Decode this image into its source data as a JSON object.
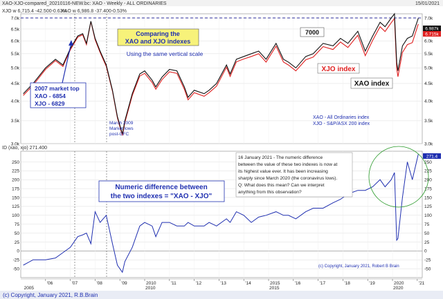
{
  "header": {
    "title": "XAO-XJO-compared_20210116-NEW.bc: XAO - Weekly - ALL ORDINARIES",
    "date": "15/01/2021",
    "legend1": "XJO w  6,715.4  -42.500-0.63%",
    "legend2": "XAO w  6,986.8  -37.400-0.53%"
  },
  "top_panel": {
    "annotations": {
      "title_line1": "Comparing the",
      "title_line2": "XAO and XJO indexes",
      "subtitle": "Using the same vertical scale",
      "market_top_1": "2007 market top",
      "market_top_2": "XAO - 6854",
      "market_top_3": "XJO - 6829",
      "gfc_1": "March 2009",
      "gfc_2": "Market lows",
      "gfc_3": "post-GFC",
      "level_7000": "7000",
      "xjo_label": "XJO index",
      "xao_label": "XAO index",
      "legend_xao": "XAO - All Ordinaries index",
      "legend_xjo": "XJO - S&P/ASX 200 index"
    },
    "last_xao": "6.987k",
    "last_xjo": "6.715k"
  },
  "bottom_panel": {
    "header": "ID (xao, xjo)  271.400",
    "last_value": "271.4",
    "box_title_1": "Numeric difference between",
    "box_title_2": "the two indexes = \"XAO - XJO\"",
    "note_lines": [
      "16 January 2021 - The numeric difference",
      "between the value of these two indexes is now at",
      "its highest value ever. It has been increasing",
      "sharply since March 2020 (the coronavirus lows).",
      "Q: What does this mean? Can we interpret",
      "anything from this observation?"
    ],
    "copyright": "(c) Copyright, January 2021, Robert B Brain"
  },
  "footer": {
    "copyright": "(c) Copyright, January 2021, R.B.Brain"
  },
  "colors": {
    "xao": "#111111",
    "xjo": "#e02020",
    "diff": "#1f2fb0",
    "ref_line": "#2a2a9a",
    "circle": "#2a9a2a",
    "bg": "#ffffff"
  },
  "chart_data": [
    {
      "type": "line",
      "title": "Comparing the XAO and XJO indexes",
      "subtitle": "Using the same vertical scale",
      "y_scale": "log",
      "ylim": [
        3.0,
        7.2
      ],
      "yticks": [
        "3.0k",
        "3.5k",
        "4.0k",
        "4.5k",
        "5.0k",
        "5.5k",
        "6.0k",
        "6.5k",
        "7.0k"
      ],
      "ytick_values": [
        3.0,
        3.5,
        4.0,
        4.5,
        5.0,
        5.5,
        6.0,
        6.5,
        7.0
      ],
      "reference_line": 7.0,
      "grid": true,
      "x": [
        2005.1,
        2005.5,
        2006.0,
        2006.4,
        2006.7,
        2007.0,
        2007.3,
        2007.5,
        2007.65,
        2007.83,
        2008.0,
        2008.2,
        2008.45,
        2008.7,
        2008.9,
        2009.1,
        2009.2,
        2009.5,
        2009.8,
        2010.0,
        2010.3,
        2010.45,
        2010.7,
        2011.0,
        2011.3,
        2011.6,
        2011.75,
        2012.0,
        2012.4,
        2012.6,
        2012.9,
        2013.3,
        2013.45,
        2013.7,
        2014.0,
        2014.3,
        2014.6,
        2014.9,
        2015.3,
        2015.6,
        2015.8,
        2016.1,
        2016.5,
        2016.8,
        2017.2,
        2017.6,
        2017.9,
        2018.2,
        2018.6,
        2018.9,
        2019.2,
        2019.5,
        2019.7,
        2019.95,
        2020.08,
        2020.17,
        2020.22,
        2020.4,
        2020.6,
        2020.8,
        2021.04
      ],
      "series": [
        {
          "name": "XAO index",
          "values": [
            4.2,
            4.5,
            5.0,
            5.3,
            5.1,
            5.7,
            6.2,
            6.3,
            5.9,
            6.85,
            6.1,
            5.6,
            5.1,
            4.3,
            3.6,
            3.2,
            3.5,
            4.2,
            4.8,
            4.9,
            4.6,
            4.4,
            4.7,
            4.95,
            4.9,
            4.4,
            4.1,
            4.3,
            4.2,
            4.3,
            4.5,
            5.1,
            4.8,
            5.3,
            5.4,
            5.5,
            5.6,
            5.3,
            5.9,
            5.3,
            5.2,
            5.0,
            5.4,
            5.5,
            5.9,
            5.8,
            6.1,
            5.9,
            6.4,
            5.6,
            6.2,
            6.8,
            6.6,
            7.0,
            7.2,
            5.2,
            4.9,
            5.8,
            6.1,
            6.2,
            6.99
          ]
        },
        {
          "name": "XJO index",
          "values": [
            4.15,
            4.45,
            4.95,
            5.25,
            5.05,
            5.65,
            6.15,
            6.25,
            5.85,
            6.83,
            6.05,
            5.55,
            5.05,
            4.27,
            3.57,
            3.17,
            3.46,
            4.15,
            4.73,
            4.82,
            4.53,
            4.33,
            4.62,
            4.87,
            4.82,
            4.33,
            4.03,
            4.23,
            4.13,
            4.23,
            4.42,
            5.02,
            4.72,
            5.21,
            5.31,
            5.4,
            5.5,
            5.2,
            5.79,
            5.2,
            5.1,
            4.9,
            5.28,
            5.38,
            5.77,
            5.66,
            5.95,
            5.74,
            6.23,
            5.43,
            6.02,
            6.6,
            6.39,
            6.78,
            6.98,
            4.98,
            4.71,
            5.55,
            5.85,
            5.93,
            6.72
          ]
        }
      ]
    },
    {
      "type": "line",
      "title": "ID (xao, xjo)",
      "ylim": [
        -75,
        280
      ],
      "yticks": [
        "-50",
        "-25",
        "0",
        "25",
        "50",
        "75",
        "100",
        "125",
        "150",
        "175",
        "200",
        "225",
        "250"
      ],
      "ytick_values": [
        -50,
        -25,
        0,
        25,
        50,
        75,
        100,
        125,
        150,
        175,
        200,
        225,
        250
      ],
      "grid": true,
      "x": [
        2005.1,
        2005.5,
        2006.0,
        2006.4,
        2006.7,
        2007.0,
        2007.3,
        2007.5,
        2007.65,
        2007.83,
        2008.0,
        2008.2,
        2008.45,
        2008.7,
        2008.9,
        2009.1,
        2009.2,
        2009.5,
        2009.8,
        2010.0,
        2010.3,
        2010.45,
        2010.7,
        2011.0,
        2011.3,
        2011.6,
        2011.75,
        2012.0,
        2012.4,
        2012.6,
        2012.9,
        2013.3,
        2013.45,
        2013.7,
        2014.0,
        2014.3,
        2014.6,
        2014.9,
        2015.3,
        2015.6,
        2015.8,
        2016.1,
        2016.5,
        2016.8,
        2017.2,
        2017.6,
        2017.9,
        2018.2,
        2018.6,
        2018.9,
        2019.2,
        2019.5,
        2019.7,
        2019.95,
        2020.08,
        2020.17,
        2020.22,
        2020.4,
        2020.6,
        2020.8,
        2021.04
      ],
      "series": [
        {
          "name": "Numeric difference XAO - XJO",
          "values": [
            -40,
            -25,
            -25,
            -20,
            -5,
            10,
            40,
            45,
            50,
            20,
            110,
            80,
            100,
            20,
            -40,
            -60,
            -30,
            10,
            70,
            80,
            70,
            40,
            80,
            80,
            70,
            70,
            80,
            70,
            70,
            80,
            70,
            90,
            80,
            110,
            100,
            80,
            95,
            100,
            110,
            100,
            100,
            90,
            110,
            120,
            120,
            135,
            145,
            160,
            170,
            170,
            180,
            200,
            180,
            200,
            220,
            30,
            35,
            150,
            250,
            200,
            271.4
          ]
        }
      ]
    }
  ],
  "x_axis": {
    "years": [
      "'06",
      "'07",
      "'08",
      "'09",
      "2010",
      "'11",
      "'12",
      "'13",
      "'14",
      "2015",
      "'16",
      "'17",
      "'18",
      "'19",
      "2020",
      "'21"
    ],
    "year_values": [
      2006,
      2007,
      2008,
      2009,
      2010,
      2011,
      2012,
      2013,
      2014,
      2015,
      2016,
      2017,
      2018,
      2019,
      2020,
      2021
    ],
    "decade_marks": [
      "2005",
      "2010",
      "2015",
      "2020"
    ],
    "decade_values": [
      2005.1,
      2010,
      2015,
      2020
    ]
  }
}
